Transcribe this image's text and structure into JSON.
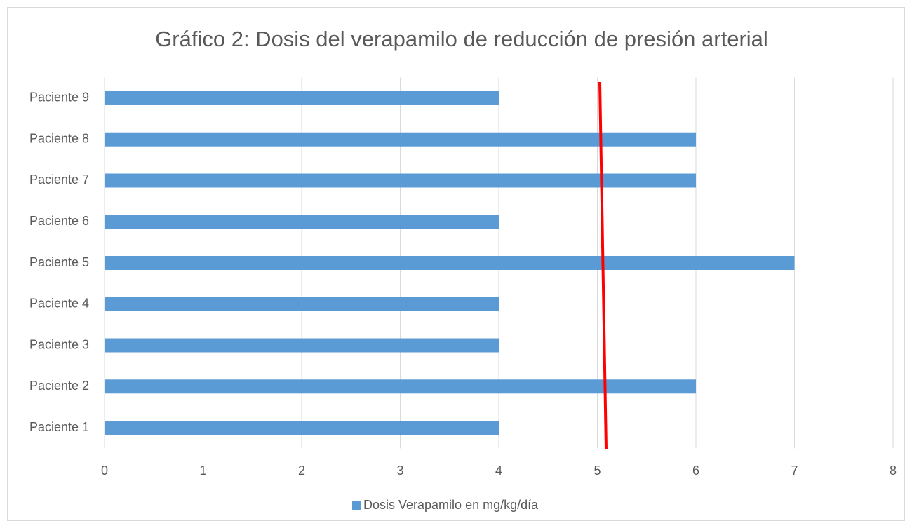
{
  "chart_data": {
    "type": "hbar",
    "title": "Gráfico 2: Dosis del verapamilo de reducción de presión arterial",
    "categories": [
      "Paciente 1",
      "Paciente 2",
      "Paciente 3",
      "Paciente 4",
      "Paciente 5",
      "Paciente 6",
      "Paciente 7",
      "Paciente 8",
      "Paciente 9"
    ],
    "series": [
      {
        "name": "Dosis Verapamilo en mg/kg/día",
        "color": "#5b9bd5",
        "values": [
          4,
          6,
          4,
          4,
          7,
          4,
          6,
          6,
          4
        ]
      }
    ],
    "xlim": [
      0,
      8
    ],
    "xticks": [
      0,
      1,
      2,
      3,
      4,
      5,
      6,
      7,
      8
    ],
    "grid": true,
    "legend": "bottom"
  }
}
